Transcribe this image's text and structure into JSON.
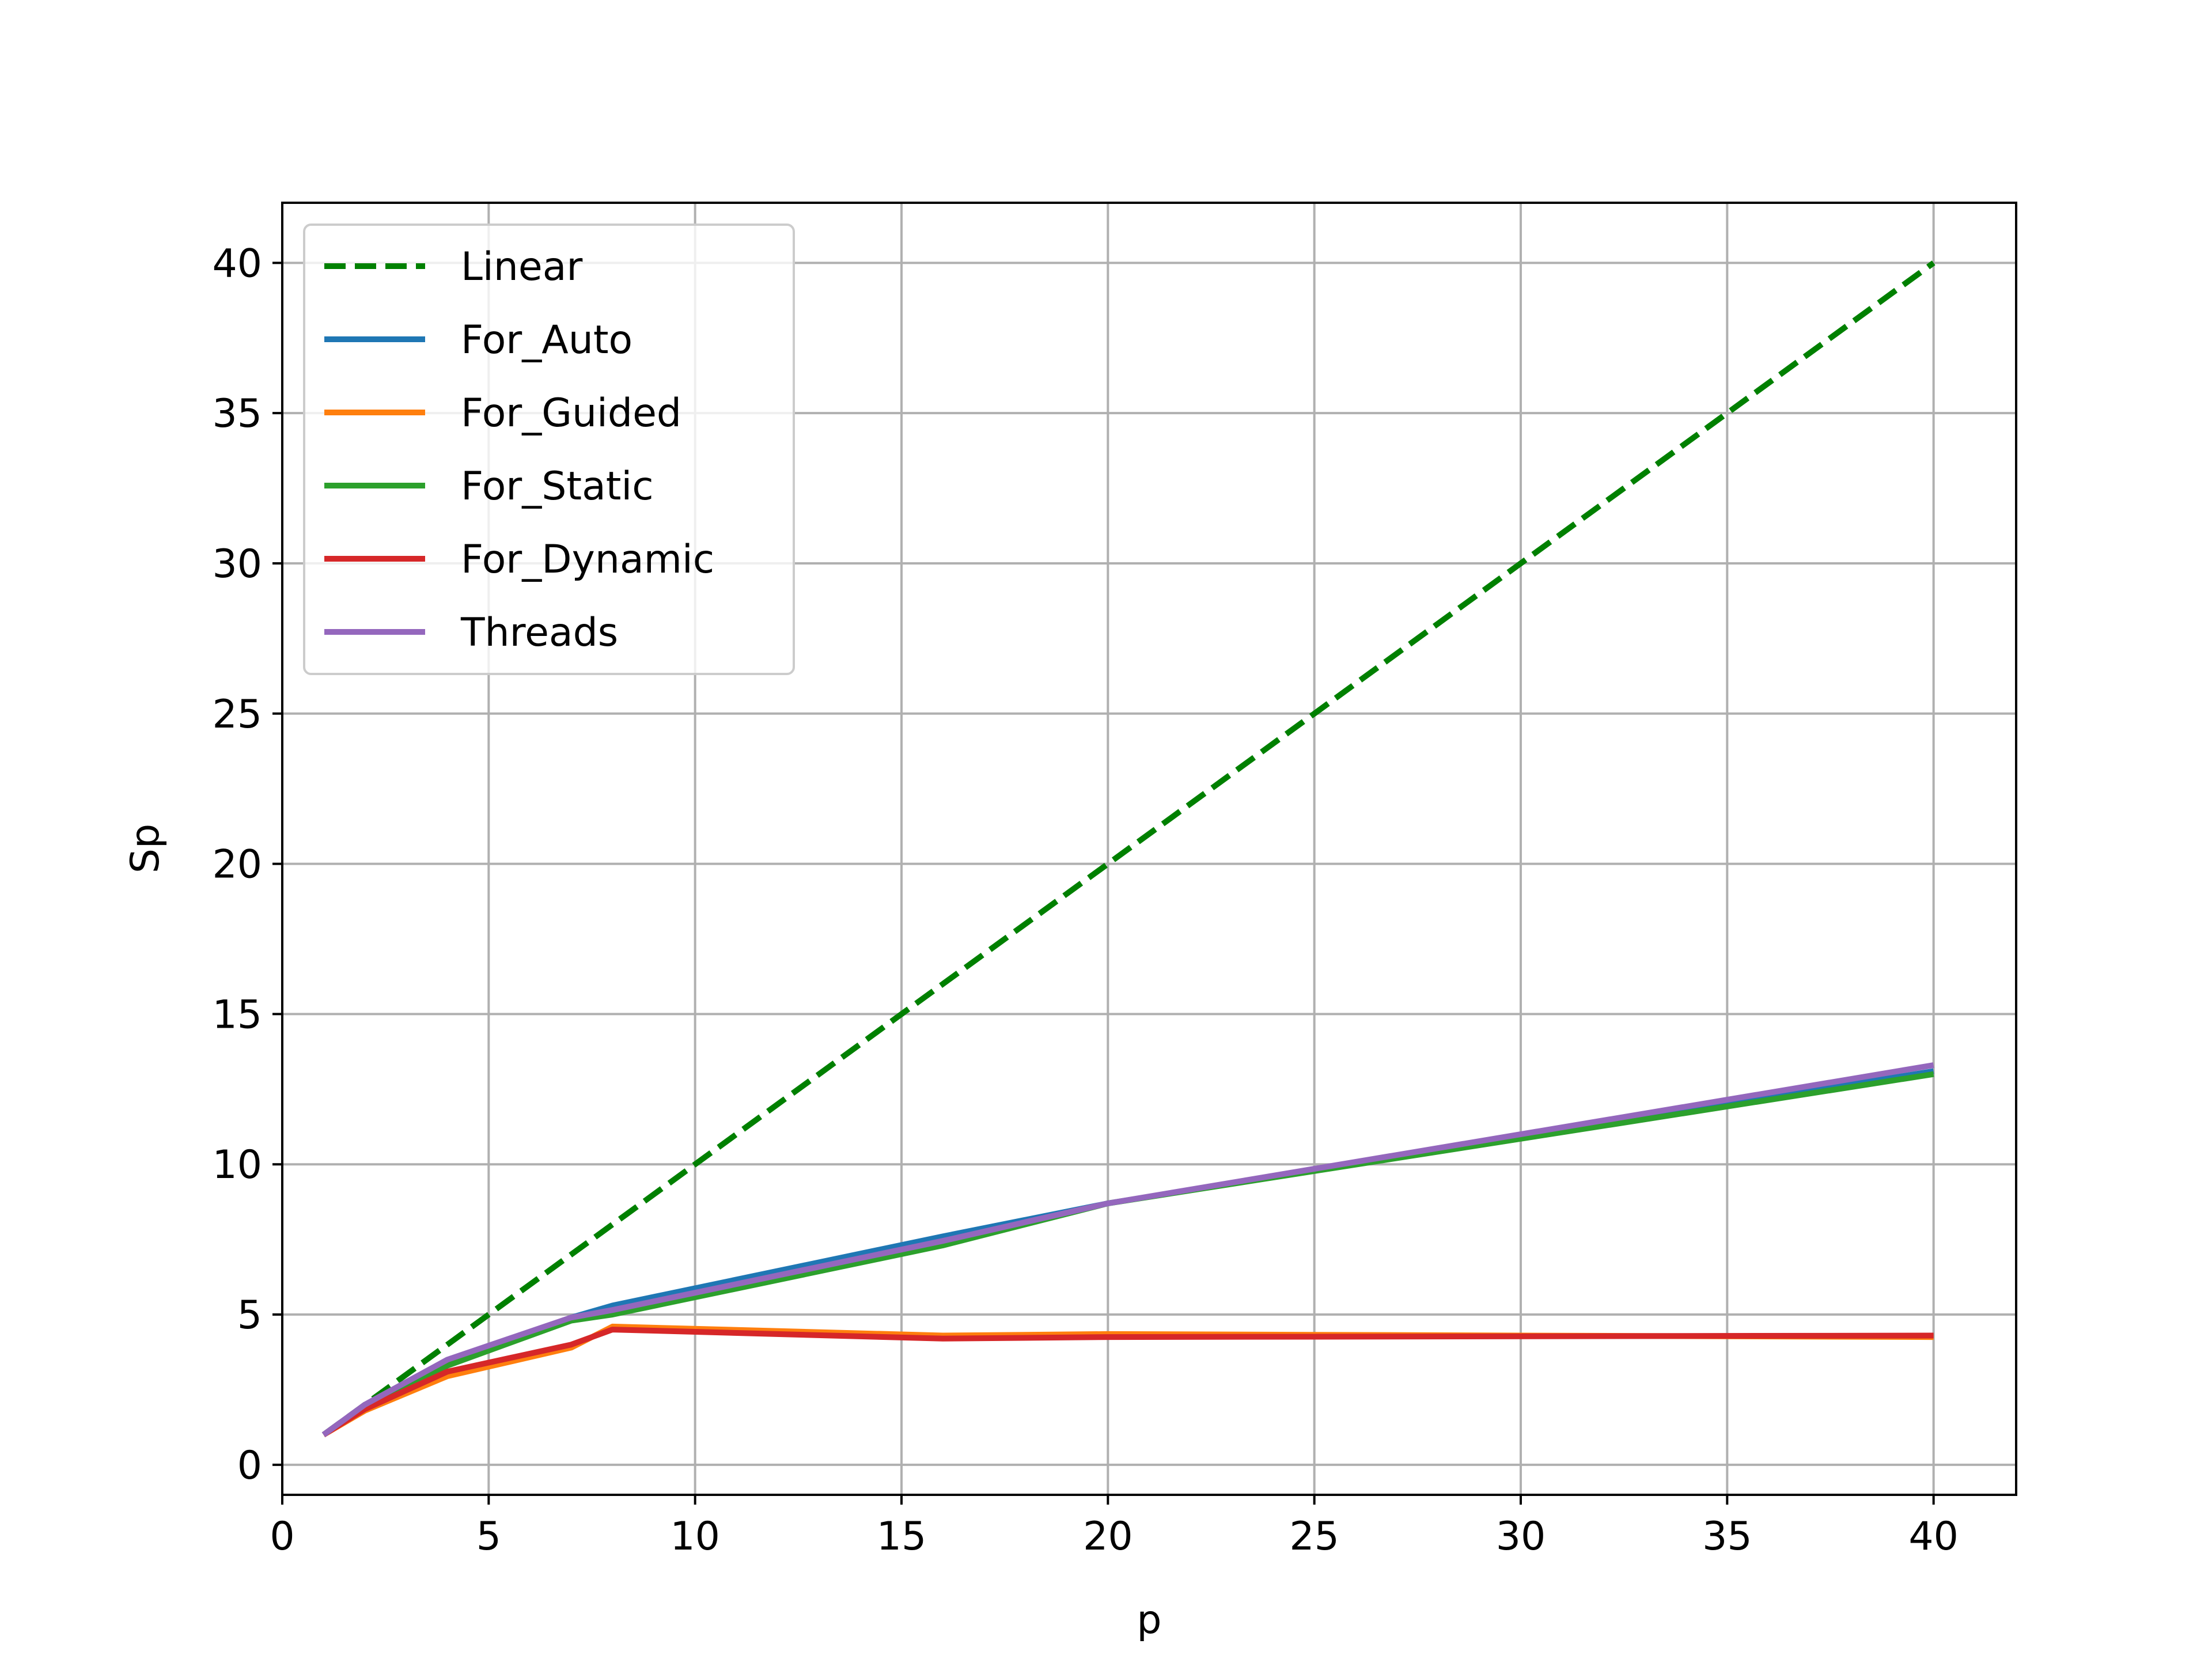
{
  "chart_data": {
    "type": "line",
    "title": "",
    "xlabel": "p",
    "ylabel": "Sp",
    "xlim": [
      0,
      42
    ],
    "ylim": [
      -1,
      42
    ],
    "xticks": [
      0,
      5,
      10,
      15,
      20,
      25,
      30,
      35,
      40
    ],
    "yticks": [
      0,
      5,
      10,
      15,
      20,
      25,
      30,
      35,
      40
    ],
    "xtick_labels": [
      "0",
      "5",
      "10",
      "15",
      "20",
      "25",
      "30",
      "35",
      "40"
    ],
    "ytick_labels": [
      "0",
      "5",
      "10",
      "15",
      "20",
      "25",
      "30",
      "35",
      "40"
    ],
    "grid": true,
    "legend_position": "top-left",
    "series": [
      {
        "name": "Linear",
        "color": "#008000",
        "dashed": true,
        "x": [
          1,
          40
        ],
        "y": [
          1,
          40
        ]
      },
      {
        "name": "For_Auto",
        "color": "#1f77b4",
        "dashed": false,
        "x": [
          1,
          2,
          4,
          7,
          8,
          16,
          20,
          40
        ],
        "y": [
          1.0,
          1.9,
          3.4,
          4.9,
          5.3,
          7.6,
          8.7,
          13.1
        ]
      },
      {
        "name": "For_Guided",
        "color": "#ff7f0e",
        "dashed": false,
        "x": [
          1,
          2,
          4,
          7,
          8,
          16,
          20,
          40
        ],
        "y": [
          1.0,
          1.8,
          2.95,
          3.9,
          4.6,
          4.3,
          4.35,
          4.25
        ]
      },
      {
        "name": "For_Static",
        "color": "#2ca02c",
        "dashed": false,
        "x": [
          1,
          2,
          4,
          7,
          8,
          16,
          20,
          40
        ],
        "y": [
          1.0,
          1.9,
          3.3,
          4.8,
          5.0,
          7.3,
          8.7,
          13.0
        ]
      },
      {
        "name": "For_Dynamic",
        "color": "#d62728",
        "dashed": false,
        "x": [
          1,
          2,
          4,
          7,
          8,
          16,
          20,
          40
        ],
        "y": [
          1.0,
          1.85,
          3.1,
          4.0,
          4.5,
          4.2,
          4.25,
          4.3
        ]
      },
      {
        "name": "Threads",
        "color": "#9467bd",
        "dashed": false,
        "x": [
          1,
          2,
          4,
          7,
          8,
          16,
          20,
          40
        ],
        "y": [
          1.0,
          2.0,
          3.5,
          4.9,
          5.15,
          7.45,
          8.7,
          13.3
        ]
      }
    ]
  }
}
